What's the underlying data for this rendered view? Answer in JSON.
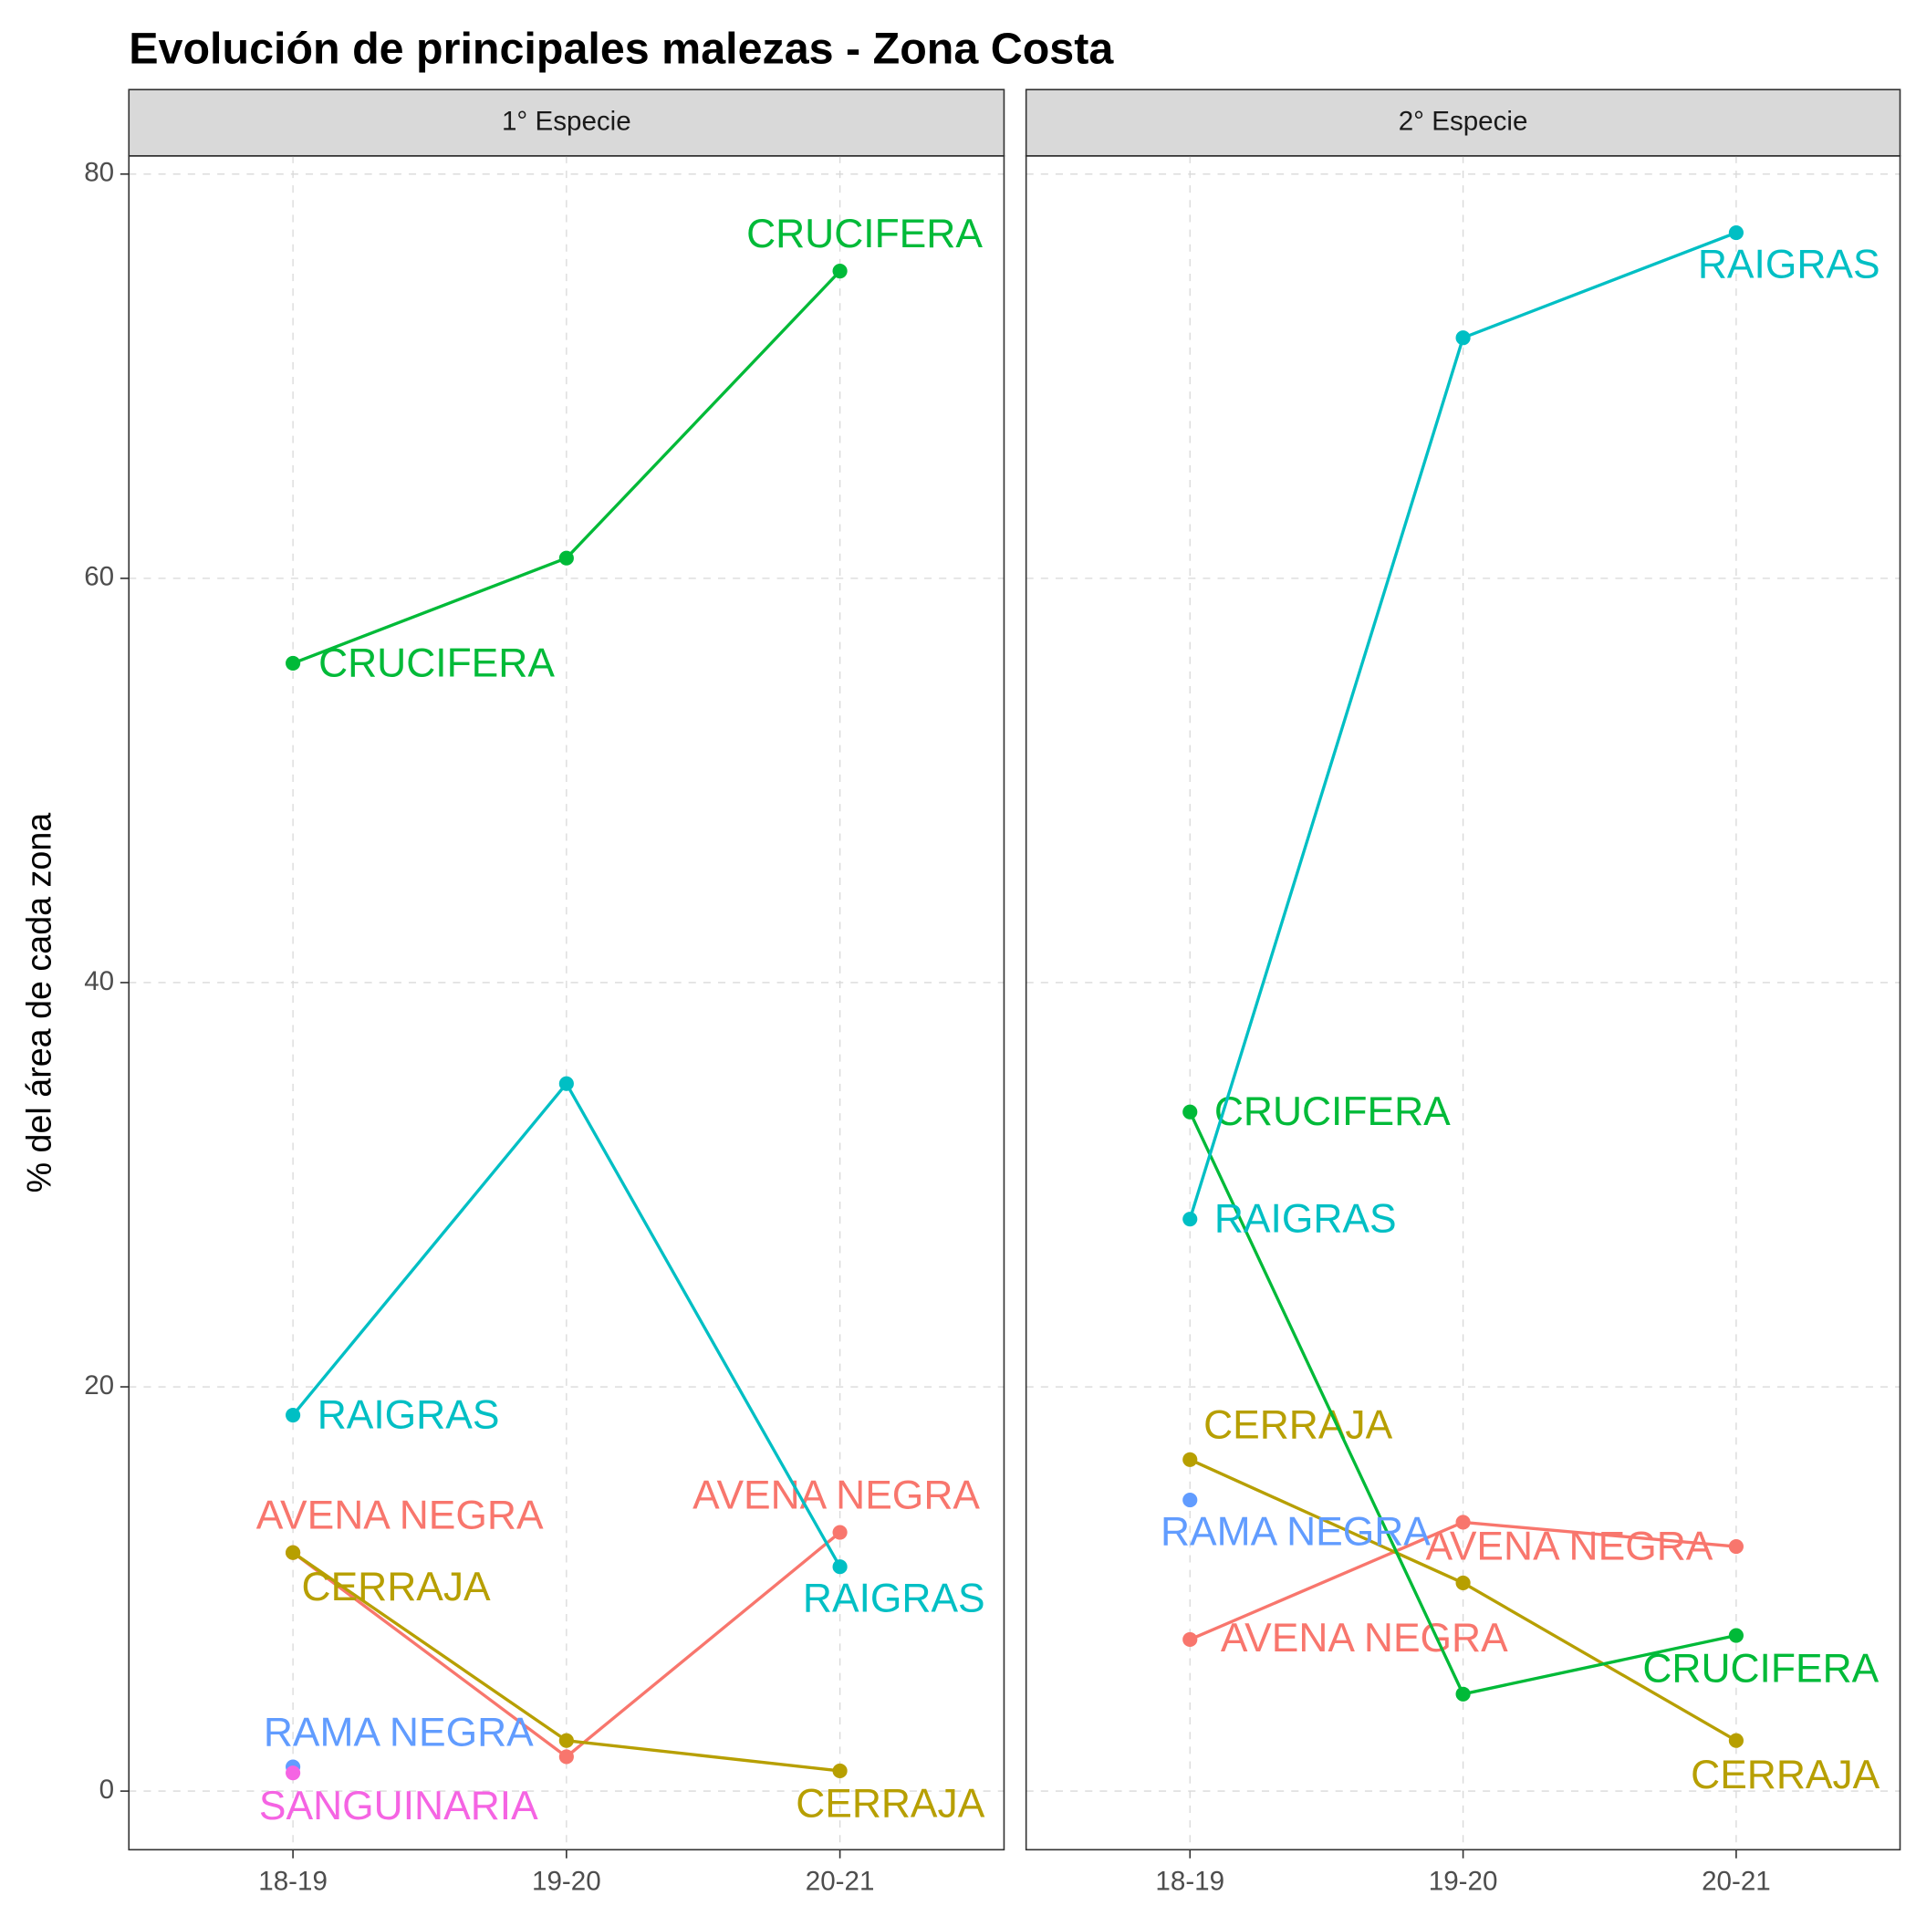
{
  "chart_data": {
    "type": "line",
    "title": "Evolución de principales malezas -  Zona Costa",
    "y_label": "% del área de cada zona",
    "categories": [
      "18-19",
      "19-20",
      "20-21"
    ],
    "ylim": [
      -2.9,
      80.9
    ],
    "yticks": [
      0,
      20,
      40,
      60,
      80
    ],
    "grid": true,
    "facets": [
      {
        "label": "1° Especie",
        "series": [
          {
            "name": "AVENA NEGRA",
            "color": "#F8766D",
            "values": [
              11.8,
              1.7,
              12.8
            ]
          },
          {
            "name": "CERRAJA",
            "color": "#B79F00",
            "values": [
              11.8,
              2.5,
              1.0
            ]
          },
          {
            "name": "CRUCIFERA",
            "color": "#00BA38",
            "values": [
              55.8,
              61.0,
              75.2
            ]
          },
          {
            "name": "RAIGRAS",
            "color": "#00BFC4",
            "values": [
              18.6,
              35.0,
              11.1
            ]
          },
          {
            "name": "RAMA NEGRA",
            "color": "#619CFF",
            "values": [
              1.2,
              null,
              null
            ]
          },
          {
            "name": "SANGUINARIA",
            "color": "#F564E3",
            "values": [
              0.9,
              null,
              null
            ]
          }
        ]
      },
      {
        "label": "2° Especie",
        "series": [
          {
            "name": "AVENA NEGRA",
            "color": "#F8766D",
            "values": [
              7.5,
              13.3,
              12.1
            ]
          },
          {
            "name": "CERRAJA",
            "color": "#B79F00",
            "values": [
              16.4,
              10.3,
              2.5
            ]
          },
          {
            "name": "CRUCIFERA",
            "color": "#00BA38",
            "values": [
              33.6,
              4.8,
              7.7
            ]
          },
          {
            "name": "RAIGRAS",
            "color": "#00BFC4",
            "values": [
              28.3,
              71.9,
              77.1
            ]
          },
          {
            "name": "RAMA NEGRA",
            "color": "#619CFF",
            "values": [
              14.4,
              null,
              null
            ]
          }
        ]
      }
    ]
  }
}
